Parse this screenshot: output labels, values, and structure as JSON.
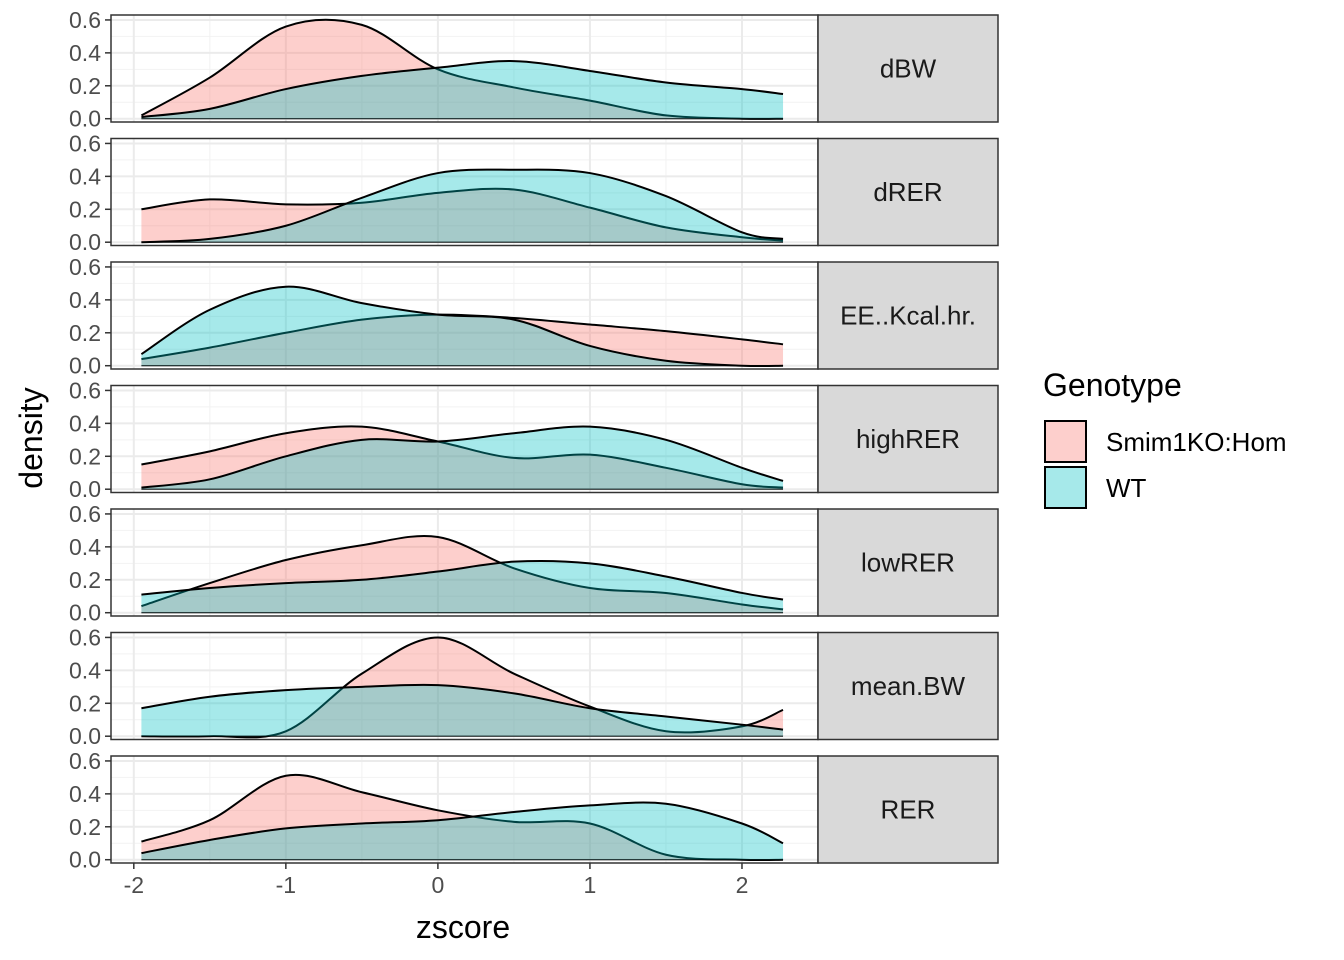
{
  "chart_data": {
    "type": "area",
    "xlabel": "zscore",
    "ylabel": "density",
    "xlim": [
      -2.15,
      2.5
    ],
    "ylim": [
      -0.02,
      0.63
    ],
    "x_ticks": [
      -2,
      -1,
      0,
      1,
      2
    ],
    "x_tick_labels": [
      "-2",
      "-1",
      "0",
      "1",
      "2"
    ],
    "y_ticks": [
      0,
      0.2,
      0.4,
      0.6
    ],
    "y_tick_labels": [
      "0.0",
      "0.2",
      "0.4",
      "0.6"
    ],
    "grid": true,
    "legend": {
      "title": "Genotype",
      "position": "right",
      "entries": [
        "Smim1KO:Hom",
        "WT"
      ]
    },
    "colors": {
      "Smim1KO:Hom": "#F8766D",
      "WT": "#00BFC4"
    },
    "fill_opacity": 0.35,
    "x": [
      -1.95,
      -1.5,
      -1.0,
      -0.5,
      0.0,
      0.5,
      1.0,
      1.5,
      2.0,
      2.27
    ],
    "panels": [
      {
        "label": "dBW",
        "series": [
          {
            "name": "Smim1KO:Hom",
            "values": [
              0.02,
              0.25,
              0.56,
              0.57,
              0.3,
              0.19,
              0.11,
              0.02,
              0.0,
              0.0
            ]
          },
          {
            "name": "WT",
            "values": [
              0.01,
              0.06,
              0.18,
              0.26,
              0.31,
              0.35,
              0.29,
              0.22,
              0.18,
              0.15
            ]
          }
        ]
      },
      {
        "label": "dRER",
        "series": [
          {
            "name": "Smim1KO:Hom",
            "values": [
              0.2,
              0.26,
              0.23,
              0.24,
              0.3,
              0.32,
              0.21,
              0.09,
              0.03,
              0.01
            ]
          },
          {
            "name": "WT",
            "values": [
              0.0,
              0.02,
              0.1,
              0.27,
              0.42,
              0.44,
              0.42,
              0.28,
              0.06,
              0.02
            ]
          }
        ]
      },
      {
        "label": "EE..Kcal.hr.",
        "series": [
          {
            "name": "Smim1KO:Hom",
            "values": [
              0.04,
              0.11,
              0.2,
              0.28,
              0.31,
              0.29,
              0.25,
              0.21,
              0.16,
              0.13
            ]
          },
          {
            "name": "WT",
            "values": [
              0.07,
              0.34,
              0.48,
              0.38,
              0.31,
              0.28,
              0.12,
              0.03,
              0.0,
              0.0
            ]
          }
        ]
      },
      {
        "label": "highRER",
        "series": [
          {
            "name": "Smim1KO:Hom",
            "values": [
              0.15,
              0.23,
              0.34,
              0.38,
              0.29,
              0.19,
              0.21,
              0.13,
              0.03,
              0.01
            ]
          },
          {
            "name": "WT",
            "values": [
              0.01,
              0.06,
              0.2,
              0.3,
              0.29,
              0.34,
              0.38,
              0.3,
              0.13,
              0.05
            ]
          }
        ]
      },
      {
        "label": "lowRER",
        "series": [
          {
            "name": "Smim1KO:Hom",
            "values": [
              0.04,
              0.18,
              0.32,
              0.41,
              0.46,
              0.27,
              0.15,
              0.12,
              0.05,
              0.02
            ]
          },
          {
            "name": "WT",
            "values": [
              0.11,
              0.15,
              0.18,
              0.2,
              0.25,
              0.31,
              0.3,
              0.22,
              0.12,
              0.08
            ]
          }
        ]
      },
      {
        "label": "mean.BW",
        "series": [
          {
            "name": "Smim1KO:Hom",
            "values": [
              0.0,
              0.0,
              0.03,
              0.38,
              0.6,
              0.38,
              0.18,
              0.03,
              0.06,
              0.16
            ]
          },
          {
            "name": "WT",
            "values": [
              0.17,
              0.24,
              0.28,
              0.3,
              0.31,
              0.26,
              0.17,
              0.12,
              0.07,
              0.04
            ]
          }
        ]
      },
      {
        "label": "RER",
        "series": [
          {
            "name": "Smim1KO:Hom",
            "values": [
              0.11,
              0.24,
              0.51,
              0.41,
              0.3,
              0.23,
              0.22,
              0.03,
              0.0,
              0.0
            ]
          },
          {
            "name": "WT",
            "values": [
              0.04,
              0.12,
              0.19,
              0.22,
              0.24,
              0.29,
              0.33,
              0.34,
              0.22,
              0.1
            ]
          }
        ]
      }
    ]
  }
}
